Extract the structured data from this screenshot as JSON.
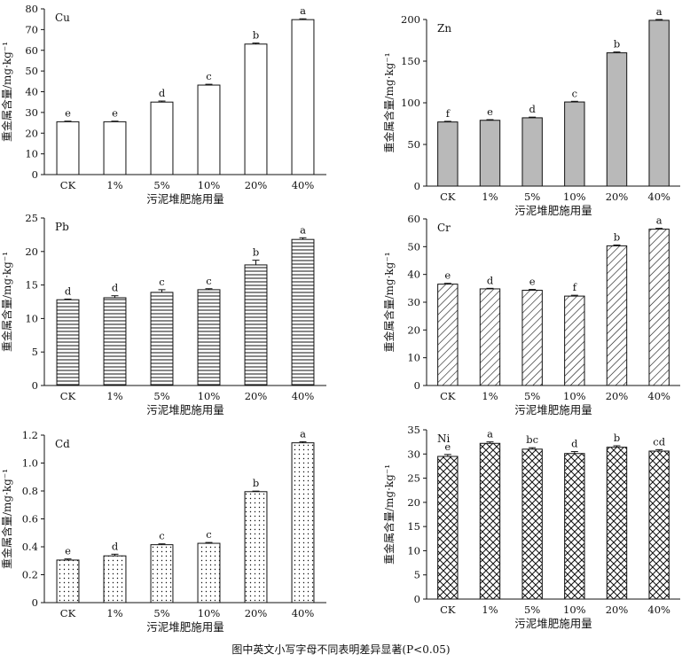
{
  "figure": {
    "caption": "图中英文小写字母不同表明差异显著(P<0.05)"
  },
  "chart_data": [
    {
      "type": "bar",
      "panel": "Cu",
      "pattern": "plain",
      "categories": [
        "CK",
        "1%",
        "5%",
        "10%",
        "20%",
        "40%"
      ],
      "values": [
        25.5,
        25.5,
        35.0,
        43.2,
        63.0,
        74.8
      ],
      "errors": [
        0.3,
        0.3,
        0.5,
        0.4,
        0.5,
        0.4
      ],
      "letters": [
        "e",
        "e",
        "d",
        "c",
        "b",
        "a"
      ],
      "ylim": [
        0,
        80
      ],
      "yticks": [
        0,
        10,
        20,
        30,
        40,
        50,
        60,
        70,
        80
      ],
      "xlabel": "污泥堆肥施用量",
      "ylabel": "重金属含量/mg·kg⁻¹"
    },
    {
      "type": "bar",
      "panel": "Zn",
      "pattern": "gray",
      "categories": [
        "CK",
        "1%",
        "5%",
        "10%",
        "20%",
        "40%"
      ],
      "values": [
        77,
        79,
        82,
        101,
        160,
        199
      ],
      "errors": [
        0.8,
        0.8,
        0.8,
        0.8,
        1.0,
        1.0
      ],
      "letters": [
        "f",
        "e",
        "d",
        "c",
        "b",
        "a"
      ],
      "ylim": [
        0,
        200
      ],
      "yticks": [
        0,
        50,
        100,
        150,
        200
      ],
      "xlabel": "污泥堆肥施用量",
      "ylabel": "重金属含量/mg·kg⁻¹"
    },
    {
      "type": "bar",
      "panel": "Pb",
      "pattern": "hlines",
      "categories": [
        "CK",
        "1%",
        "5%",
        "10%",
        "20%",
        "40%"
      ],
      "values": [
        12.8,
        13.1,
        13.9,
        14.3,
        18.0,
        21.8
      ],
      "errors": [
        0.1,
        0.3,
        0.4,
        0.15,
        0.7,
        0.25
      ],
      "letters": [
        "d",
        "d",
        "c",
        "c",
        "b",
        "a"
      ],
      "ylim": [
        0,
        25
      ],
      "yticks": [
        0,
        5,
        10,
        15,
        20,
        25
      ],
      "xlabel": "污泥堆肥施用量",
      "ylabel": "重金属含量/mg·kg⁻¹"
    },
    {
      "type": "bar",
      "panel": "Cr",
      "pattern": "diag",
      "categories": [
        "CK",
        "1%",
        "5%",
        "10%",
        "20%",
        "40%"
      ],
      "values": [
        36.5,
        34.8,
        34.3,
        32.2,
        50.3,
        56.3
      ],
      "errors": [
        0.3,
        0.2,
        0.3,
        0.3,
        0.3,
        0.3
      ],
      "letters": [
        "e",
        "d",
        "e",
        "f",
        "b",
        "a"
      ],
      "ylim": [
        0,
        60
      ],
      "yticks": [
        0,
        10,
        20,
        30,
        40,
        50,
        60
      ],
      "xlabel": "污泥堆肥施用量",
      "ylabel": "重金属含量/mg·kg⁻¹"
    },
    {
      "type": "bar",
      "panel": "Cd",
      "pattern": "dots",
      "categories": [
        "CK",
        "1%",
        "5%",
        "10%",
        "20%",
        "40%"
      ],
      "values": [
        0.305,
        0.335,
        0.415,
        0.425,
        0.795,
        1.145
      ],
      "errors": [
        0.008,
        0.012,
        0.006,
        0.006,
        0.004,
        0.008
      ],
      "letters": [
        "e",
        "d",
        "c",
        "c",
        "b",
        "a"
      ],
      "ylim": [
        0,
        1.2
      ],
      "yticks": [
        0,
        0.2,
        0.4,
        0.6,
        0.8,
        1.0,
        1.2
      ],
      "ytick_labels": [
        "0",
        "0.2",
        "0.4",
        "0.6",
        "0.8",
        "1.0",
        "1.2"
      ],
      "xlabel": "污泥堆肥施用量",
      "ylabel": "重金属含量/mg·kg⁻¹"
    },
    {
      "type": "bar",
      "panel": "Ni",
      "pattern": "cross",
      "categories": [
        "CK",
        "1%",
        "5%",
        "10%",
        "20%",
        "40%"
      ],
      "values": [
        29.5,
        32.2,
        31.0,
        30.1,
        31.4,
        30.6
      ],
      "errors": [
        0.4,
        0.3,
        0.3,
        0.4,
        0.3,
        0.3
      ],
      "letters": [
        "e",
        "a",
        "bc",
        "d",
        "b",
        "cd"
      ],
      "ylim": [
        0,
        35
      ],
      "yticks": [
        0,
        5,
        10,
        15,
        20,
        25,
        30,
        35
      ],
      "xlabel": "污泥堆肥施用量",
      "ylabel": "重金属含量/mg·kg⁻¹"
    }
  ]
}
